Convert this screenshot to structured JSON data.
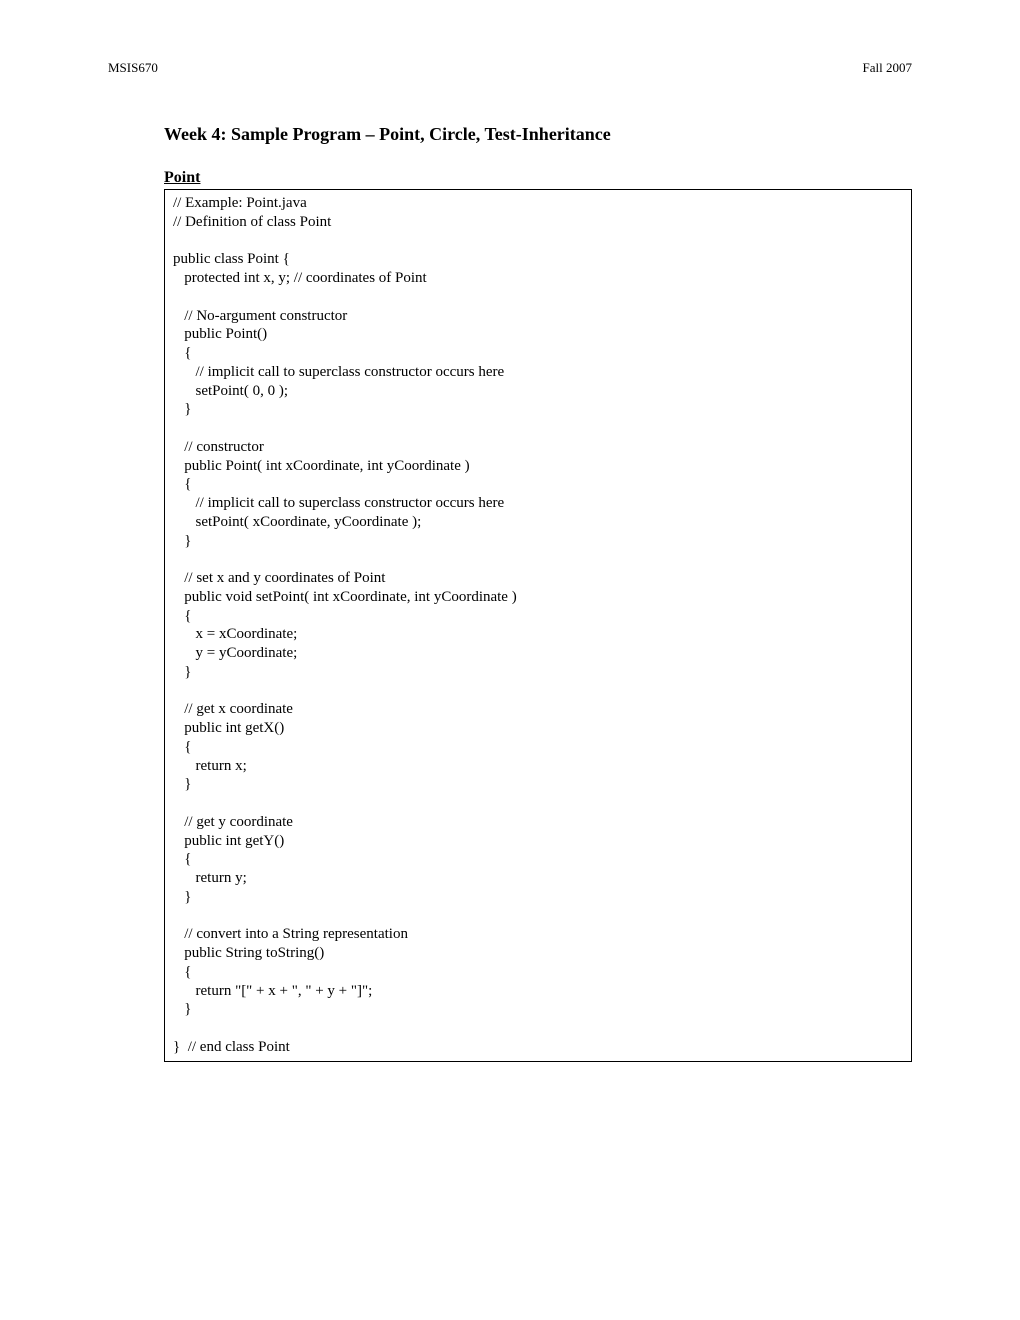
{
  "header": {
    "left": "MSIS670",
    "right": "Fall 2007"
  },
  "title": "Week 4: Sample Program – Point, Circle, Test-Inheritance",
  "section": "Point",
  "code": "// Example: Point.java\n// Definition of class Point\n\npublic class Point {\n   protected int x, y; // coordinates of Point\n\n   // No-argument constructor\n   public Point()\n   {\n      // implicit call to superclass constructor occurs here\n      setPoint( 0, 0 );\n   }\n\n   // constructor\n   public Point( int xCoordinate, int yCoordinate )\n   {\n      // implicit call to superclass constructor occurs here\n      setPoint( xCoordinate, yCoordinate );\n   }\n\n   // set x and y coordinates of Point\n   public void setPoint( int xCoordinate, int yCoordinate )\n   {\n      x = xCoordinate;\n      y = yCoordinate;\n   }\n\n   // get x coordinate\n   public int getX()\n   {\n      return x;\n   }\n\n   // get y coordinate\n   public int getY()\n   {\n      return y;\n   }\n\n   // convert into a String representation\n   public String toString()\n   {\n      return \"[\" + x + \", \" + y + \"]\";\n   }\n\n}  // end class Point"
}
